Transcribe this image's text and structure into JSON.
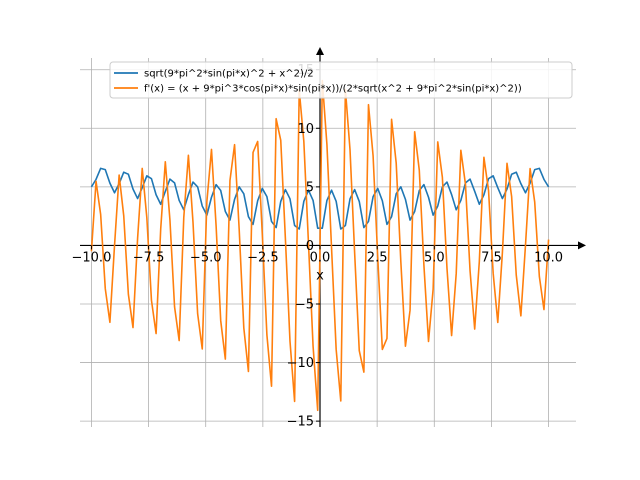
{
  "chart_data": {
    "type": "line",
    "title": "",
    "xlabel": "x",
    "ylabel": "",
    "xlim": [
      -10.5,
      11.2
    ],
    "ylim": [
      -15.5,
      16.0
    ],
    "xticks": [
      -10.0,
      -7.5,
      -5.0,
      -2.5,
      0.0,
      2.5,
      5.0,
      7.5,
      10.0
    ],
    "xtick_labels": [
      "−10.0",
      "−7.5",
      "−5.0",
      "−2.5",
      "0.0",
      "2.5",
      "5.0",
      "7.5",
      "10.0"
    ],
    "yticks": [
      -15,
      -10,
      -5,
      0,
      5,
      10,
      15
    ],
    "ytick_labels": [
      "−15",
      "−10",
      "−5",
      "0",
      "5",
      "10",
      "15"
    ],
    "grid": true,
    "legend_position": "top",
    "x_range": [
      -10,
      10
    ],
    "sample_count": 100,
    "series": [
      {
        "name": "sqrt(9*pi^2*sin(pi*x)^2 + x^2)/2",
        "color": "#1f77b4",
        "expr": "f"
      },
      {
        "name": "f'(x) = (x + 9*pi^3*cos(pi*x)*sin(pi*x))/(2*sqrt(x^2 + 9*pi^2*sin(pi*x)^2))",
        "color": "#ff7f0e",
        "expr": "df"
      }
    ]
  }
}
